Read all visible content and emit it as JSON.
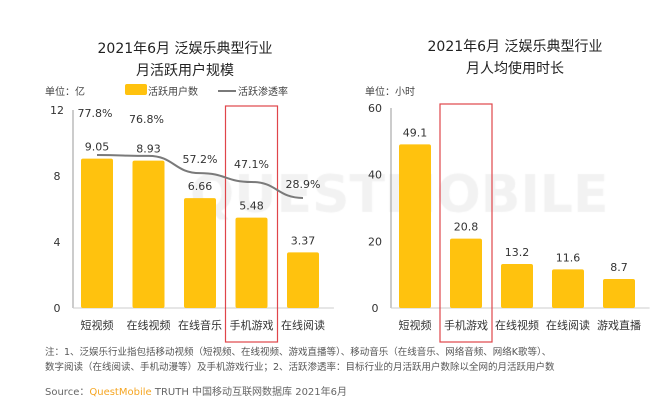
{
  "chart_data": [
    {
      "type": "bar",
      "title": "2021年6月 泛娱乐典型行业\n月活跃用户规模",
      "title_lines": [
        "2021年6月 泛娱乐典型行业",
        "月活跃用户规模"
      ],
      "unit_label": "单位：亿",
      "categories": [
        "短视频",
        "在线视频",
        "在线音乐",
        "手机游戏",
        "在线阅读"
      ],
      "series": [
        {
          "name": "活跃用户数",
          "type": "bar",
          "values": [
            9.05,
            8.93,
            6.66,
            5.48,
            3.37
          ],
          "labels": [
            "9.05",
            "8.93",
            "6.66",
            "5.48",
            "3.37"
          ]
        },
        {
          "name": "活跃渗透率",
          "type": "line",
          "values": [
            77.8,
            76.8,
            57.2,
            47.1,
            28.9
          ],
          "labels": [
            "77.8%",
            "76.8%",
            "57.2%",
            "47.1%",
            "28.9%"
          ]
        }
      ],
      "ylim": [
        0,
        12
      ],
      "yticks": [
        "0",
        "4",
        "8",
        "12"
      ],
      "highlight": "手机游戏"
    },
    {
      "type": "bar",
      "title_lines": [
        "2021年6月 泛娱乐典型行业",
        "月人均使用时长"
      ],
      "unit_label": "单位：小时",
      "categories": [
        "短视频",
        "手机游戏",
        "在线视频",
        "在线阅读",
        "游戏直播"
      ],
      "values": [
        49.1,
        20.8,
        13.2,
        11.6,
        8.7
      ],
      "labels": [
        "49.1",
        "20.8",
        "13.2",
        "11.6",
        "8.7"
      ],
      "ylim": [
        0,
        60
      ],
      "yticks": [
        "0",
        "20",
        "40",
        "60"
      ],
      "highlight": "手机游戏"
    }
  ],
  "colors": {
    "bar": "#FFC20E",
    "line": "#7a7a7a",
    "highlight": "#e0454a",
    "brand": "#F5A623"
  },
  "watermark": "QUESTMOBILE",
  "note_lines": [
    "注：1、泛娱乐行业指包括移动视频（短视频、在线视频、游戏直播等）、移动音乐（在线音乐、网络音频、网络K歌等）、",
    "数字阅读（在线阅读、手机动漫等）及手机游戏行业；2、活跃渗透率：目标行业的月活跃用户数除以全网的月活跃用户数"
  ],
  "source": {
    "label": "Source：",
    "brand": "QuestMobile",
    "rest": "TRUTH 中国移动互联网数据库 2021年6月"
  }
}
